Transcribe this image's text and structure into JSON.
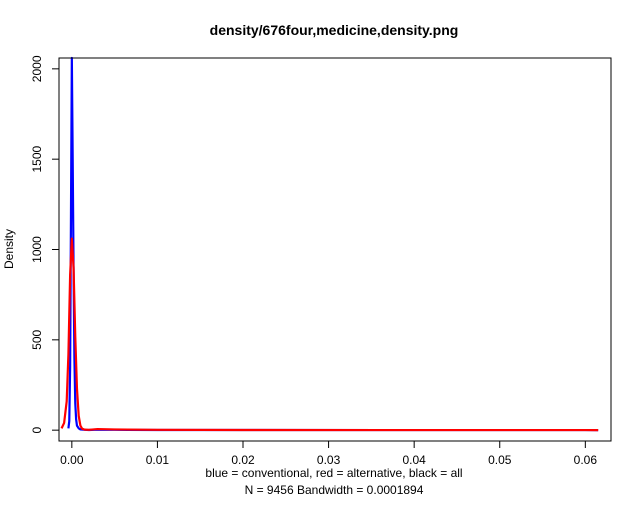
{
  "chart_data": {
    "type": "line",
    "title": "density/676four,medicine,density.png",
    "ylabel": "Density",
    "xlabel_lines": [
      "blue = conventional, red = alternative, black = all",
      "N = 9456   Bandwidth = 0.0001894"
    ],
    "xlim": [
      -0.0015,
      0.063
    ],
    "ylim": [
      -60,
      2060
    ],
    "x_ticks": [
      0.0,
      0.01,
      0.02,
      0.03,
      0.04,
      0.05,
      0.06
    ],
    "x_tick_labels": [
      "0.00",
      "0.01",
      "0.02",
      "0.03",
      "0.04",
      "0.05",
      "0.06"
    ],
    "y_ticks": [
      0,
      500,
      1000,
      1500,
      2000
    ],
    "y_tick_labels": [
      "0",
      "500",
      "1000",
      "1500",
      "2000"
    ],
    "grid": false,
    "series": [
      {
        "color": "#0000ff",
        "x": [
          -0.0004,
          -0.0003,
          -0.0002,
          -0.0001,
          0.0,
          0.0001,
          0.0002,
          0.0003,
          0.0004,
          0.0005,
          0.0006,
          0.0008,
          0.001,
          0.0015,
          0.002,
          0.003,
          0.005,
          0.01,
          0.02,
          0.04,
          0.06,
          0.0615
        ],
        "y": [
          10,
          50,
          350,
          1200,
          2060,
          1500,
          900,
          400,
          150,
          60,
          25,
          10,
          4,
          2,
          1,
          3,
          2,
          1,
          1,
          0.5,
          0.5,
          0
        ]
      },
      {
        "color": "#ff0000",
        "x": [
          -0.0012,
          -0.0009,
          -0.0006,
          -0.0004,
          -0.0002,
          0.0,
          0.0002,
          0.0004,
          0.0006,
          0.0008,
          0.001,
          0.0012,
          0.0015,
          0.002,
          0.003,
          0.005,
          0.01,
          0.02,
          0.04,
          0.06,
          0.0615
        ],
        "y": [
          10,
          40,
          160,
          420,
          860,
          1060,
          900,
          520,
          230,
          80,
          25,
          8,
          3,
          2,
          6,
          4,
          2,
          1,
          0.5,
          0.5,
          0
        ]
      }
    ]
  }
}
